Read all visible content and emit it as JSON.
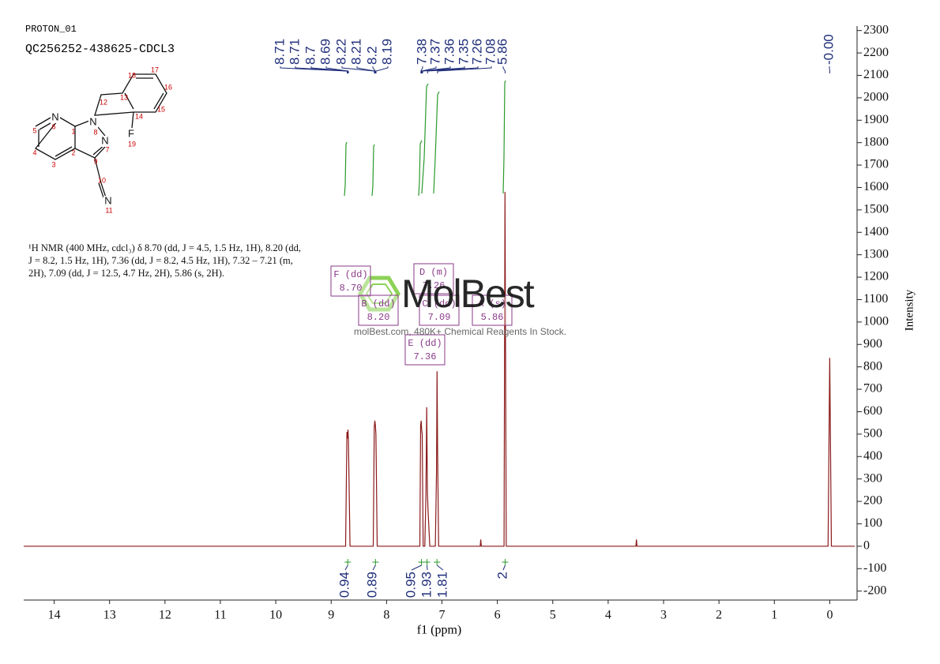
{
  "chart_data": {
    "type": "line",
    "header": "PROTON_01",
    "title": "QC256252-438625-CDCL3",
    "description": "¹H NMR (400 MHz, cdcl₃) δ 8.70 (dd, J = 4.5, 1.5 Hz, 1H), 8.20 (dd, J = 8.2, 1.5 Hz, 1H), 7.36 (dd, J = 8.2, 4.5 Hz, 1H), 7.32 – 7.21 (m, 2H), 7.09 (dd, J = 12.5, 4.7 Hz, 2H), 5.86 (s, 2H).",
    "xlabel": "f1 (ppm)",
    "ylabel": "Intensity",
    "xlim": [
      14.55,
      -0.45
    ],
    "ylim": [
      -240,
      2320
    ],
    "xticks": [
      14,
      13,
      12,
      11,
      10,
      9,
      8,
      7,
      6,
      5,
      4,
      3,
      2,
      1,
      0
    ],
    "yticks": [
      -200,
      -100,
      0,
      100,
      200,
      300,
      400,
      500,
      600,
      700,
      800,
      900,
      1000,
      1100,
      1200,
      1300,
      1400,
      1500,
      1600,
      1700,
      1800,
      1900,
      2000,
      2100,
      2200,
      2300
    ],
    "series": [
      {
        "color": "#8b1a1a",
        "x": [
          14.55,
          8.74,
          8.715,
          8.705,
          8.697,
          8.688,
          8.66,
          8.24,
          8.222,
          8.212,
          8.202,
          8.192,
          8.17,
          7.4,
          7.385,
          7.375,
          7.366,
          7.356,
          7.34,
          7.31,
          7.29,
          7.275,
          7.262,
          7.25,
          7.22,
          7.12,
          7.098,
          7.088,
          7.078,
          7.06,
          6.31,
          6.3,
          6.29,
          5.88,
          5.862,
          5.84,
          3.5,
          3.49,
          3.48,
          0.03,
          0.0,
          -0.03,
          -0.45
        ],
        "values": [
          0,
          0,
          510,
          480,
          520,
          470,
          0,
          0,
          530,
          560,
          540,
          500,
          0,
          0,
          540,
          560,
          520,
          500,
          0,
          0,
          230,
          620,
          240,
          150,
          0,
          0,
          330,
          780,
          420,
          0,
          0,
          30,
          0,
          0,
          1580,
          0,
          0,
          30,
          0,
          0,
          840,
          0,
          0
        ]
      }
    ],
    "peak_labels": [
      8.71,
      8.71,
      8.7,
      8.69,
      8.22,
      8.21,
      8.2,
      8.19,
      7.38,
      7.37,
      7.36,
      7.35,
      7.26,
      7.08,
      5.86,
      {
        "value": 0,
        "label": "-0.00"
      }
    ],
    "integrals": [
      {
        "x": 8.7,
        "value": 0.94
      },
      {
        "x": 8.2,
        "value": 0.89
      },
      {
        "x": 7.37,
        "value": 0.95
      },
      {
        "x": 7.27,
        "value": 1.93
      },
      {
        "x": 7.09,
        "value": 1.81
      },
      {
        "x": 5.86,
        "value": 2.0
      }
    ],
    "multiplets": [
      {
        "name": "F (dd)",
        "shift": "8.70"
      },
      {
        "name": "B (dd)",
        "shift": "8.20"
      },
      {
        "name": "D (m)",
        "shift": "7.26"
      },
      {
        "name": "C (dd)",
        "shift": "7.09"
      },
      {
        "name": "A (s)",
        "shift": "5.86"
      },
      {
        "name": "E (dd)",
        "shift": "7.36"
      }
    ],
    "watermark": {
      "brand": "MolBest",
      "tagline": "molBest.com, 480K+ Chemical Reagents In Stock."
    },
    "molecule": {
      "atoms": [
        "N",
        "N",
        "N",
        "F",
        "N"
      ],
      "numbers": [
        "1",
        "2",
        "3",
        "4",
        "5",
        "6",
        "7",
        "8",
        "9",
        "10",
        "11",
        "12",
        "13",
        "14",
        "15",
        "16",
        "17",
        "18",
        "19"
      ]
    }
  }
}
